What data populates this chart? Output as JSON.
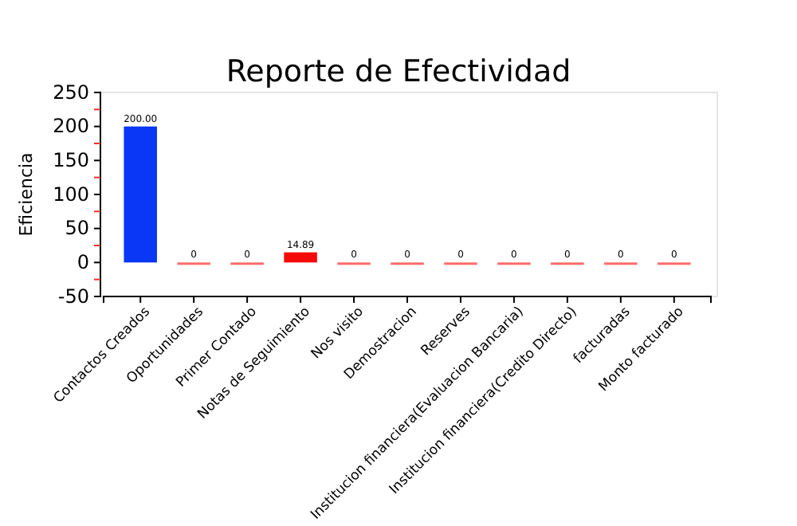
{
  "chart_data": {
    "type": "bar",
    "title": "Reporte de Efectividad",
    "ylabel": "Eficiencia",
    "categories": [
      "Contactos Creados",
      "Oportunidades",
      "Primer Contado",
      "Notas de Seguimiento",
      "Nos visito",
      "Demostracion",
      "Reserves",
      "Institucion financiera(Evaluacion Bancaria)",
      "Institucion financiera(Credito Directo)",
      "facturadas",
      "Monto facturado"
    ],
    "values": [
      200,
      0,
      0,
      14.89,
      0,
      0,
      0,
      0,
      0,
      0,
      0
    ],
    "value_labels": [
      "200.00",
      "0",
      "0",
      "14.89",
      "0",
      "0",
      "0",
      "0",
      "0",
      "0",
      "0"
    ],
    "colors": [
      "#0a37f5",
      "#ff6b6b",
      "#ff6b6b",
      "#f50a0a",
      "#ff6b6b",
      "#ff6b6b",
      "#ff6b6b",
      "#ff6b6b",
      "#ff6b6b",
      "#ff6b6b",
      "#ff6b6b"
    ],
    "ylim": [
      -50,
      250
    ],
    "yticks": [
      -50,
      {
        "value": -25,
        "label": null
      },
      0,
      {
        "value": 25,
        "label": null
      },
      50,
      {
        "value": 75,
        "label": null
      },
      100,
      {
        "value": 125,
        "label": null
      },
      150,
      {
        "value": 175,
        "label": null
      },
      200,
      {
        "value": 225,
        "label": null
      },
      250
    ]
  }
}
